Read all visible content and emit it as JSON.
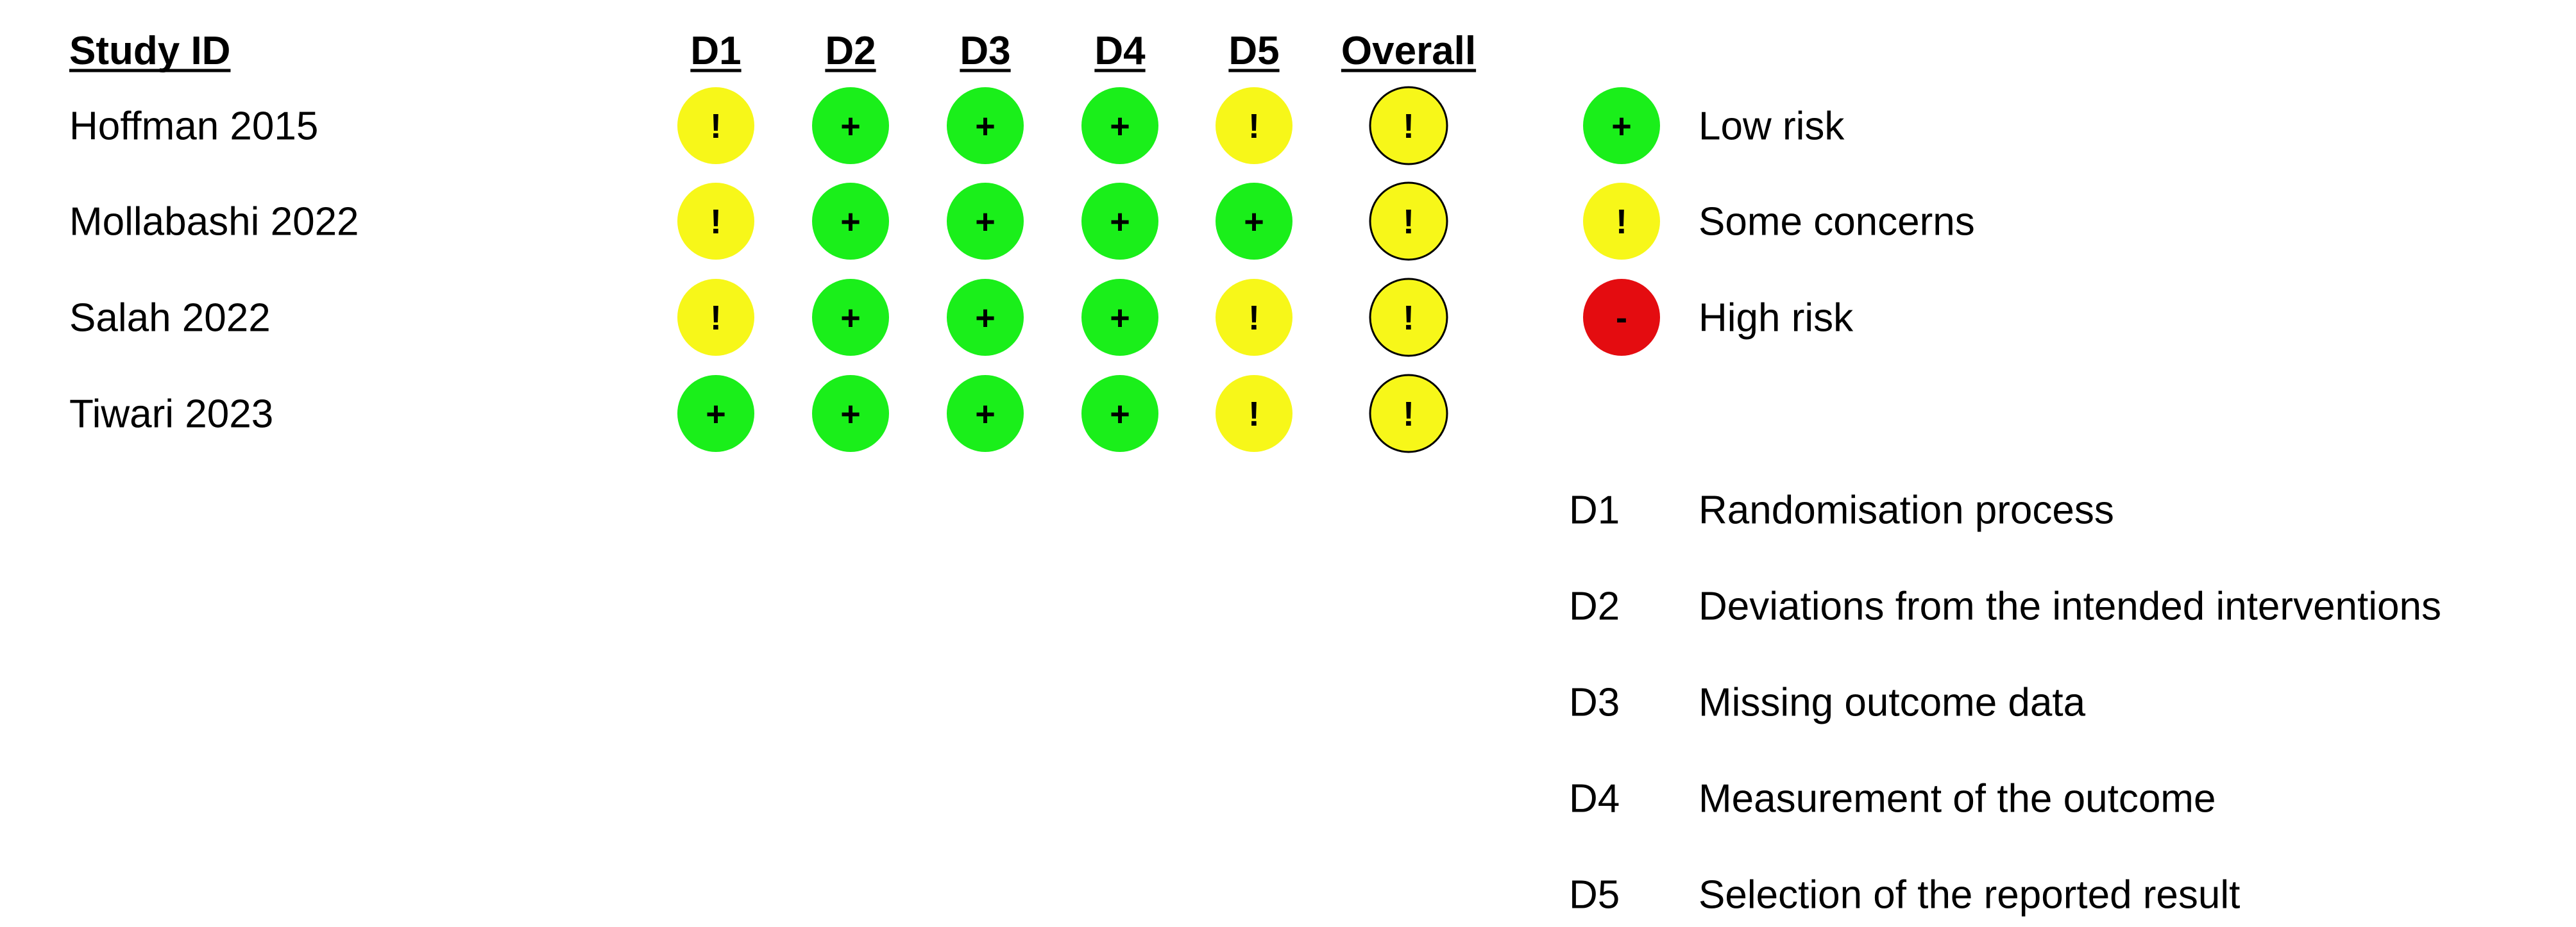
{
  "colors": {
    "low": "#1aef1a",
    "some": "#f7f719",
    "high": "#e40c10",
    "outline": "#000000"
  },
  "chart_data": {
    "type": "table",
    "header": {
      "study_id": "Study ID",
      "domains": [
        "D1",
        "D2",
        "D3",
        "D4",
        "D5"
      ],
      "overall": "Overall"
    },
    "studies": [
      {
        "name": "Hoffman 2015",
        "judgements": [
          "some",
          "low",
          "low",
          "low",
          "some"
        ],
        "overall": "some"
      },
      {
        "name": "Mollabashi 2022",
        "judgements": [
          "some",
          "low",
          "low",
          "low",
          "low"
        ],
        "overall": "some"
      },
      {
        "name": "Salah 2022",
        "judgements": [
          "some",
          "low",
          "low",
          "low",
          "some"
        ],
        "overall": "some"
      },
      {
        "name": "Tiwari 2023",
        "judgements": [
          "low",
          "low",
          "low",
          "low",
          "some"
        ],
        "overall": "some"
      }
    ],
    "legend": [
      {
        "level": "low",
        "symbol": "+",
        "label": "Low risk"
      },
      {
        "level": "some",
        "symbol": "!",
        "label": "Some concerns"
      },
      {
        "level": "high",
        "symbol": "-",
        "label": "High risk"
      }
    ],
    "domain_definitions": [
      {
        "code": "D1",
        "description": "Randomisation process"
      },
      {
        "code": "D2",
        "description": "Deviations from the intended interventions"
      },
      {
        "code": "D3",
        "description": "Missing outcome data"
      },
      {
        "code": "D4",
        "description": "Measurement of the outcome"
      },
      {
        "code": "D5",
        "description": "Selection of the reported result"
      }
    ]
  }
}
